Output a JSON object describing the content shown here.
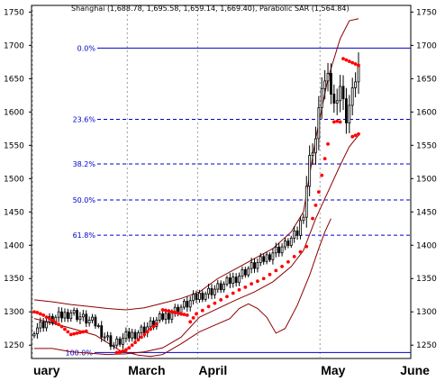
{
  "chart_data": {
    "type": "candlestick",
    "title": "Shanghai (1,688.78, 1,695.58, 1,659.14, 1,669.40), Parabolic SAR (1,564.84)",
    "ylim": [
      1230,
      1760
    ],
    "y_ticks": [
      1250,
      1300,
      1350,
      1400,
      1450,
      1500,
      1550,
      1600,
      1650,
      1700,
      1750
    ],
    "x_labels": [
      "uary",
      "March",
      "April",
      "May",
      "June"
    ],
    "month_starts": [
      0,
      31,
      54,
      94
    ],
    "n_bars": 107,
    "fibonacci": [
      {
        "label": "0.0%",
        "value": 1696
      },
      {
        "label": "23.6%",
        "value": 1589
      },
      {
        "label": "38.2%",
        "value": 1522
      },
      {
        "label": "50.0%",
        "value": 1468
      },
      {
        "label": "61.8%",
        "value": 1415
      },
      {
        "label": "100.0%",
        "value": 1239
      }
    ],
    "keypoints": [
      [
        0,
        1275
      ],
      [
        4,
        1285
      ],
      [
        8,
        1292
      ],
      [
        12,
        1300
      ],
      [
        16,
        1290
      ],
      [
        20,
        1282
      ],
      [
        23,
        1264
      ],
      [
        26,
        1250
      ],
      [
        30,
        1262
      ],
      [
        34,
        1270
      ],
      [
        38,
        1280
      ],
      [
        42,
        1292
      ],
      [
        46,
        1302
      ],
      [
        50,
        1312
      ],
      [
        54,
        1325
      ],
      [
        58,
        1332
      ],
      [
        62,
        1340
      ],
      [
        66,
        1352
      ],
      [
        70,
        1365
      ],
      [
        74,
        1375
      ],
      [
        78,
        1390
      ],
      [
        82,
        1400
      ],
      [
        86,
        1418
      ],
      [
        88,
        1450
      ],
      [
        90,
        1530
      ],
      [
        92,
        1560
      ],
      [
        94,
        1640
      ],
      [
        96,
        1650
      ],
      [
        98,
        1610
      ],
      [
        100,
        1640
      ],
      [
        102,
        1590
      ],
      [
        104,
        1630
      ],
      [
        106,
        1670
      ]
    ],
    "sar": [
      [
        0,
        1300
      ],
      [
        1,
        1299
      ],
      [
        2,
        1297
      ],
      [
        3,
        1295
      ],
      [
        4,
        1292
      ],
      [
        5,
        1290
      ],
      [
        6,
        1287
      ],
      [
        7,
        1284
      ],
      [
        8,
        1281
      ],
      [
        9,
        1278
      ],
      [
        10,
        1274
      ],
      [
        11,
        1270
      ],
      [
        12,
        1266
      ],
      [
        13,
        1267
      ],
      [
        14,
        1268
      ],
      [
        15,
        1269
      ],
      [
        16,
        1270
      ],
      [
        17,
        1271
      ],
      [
        27,
        1239
      ],
      [
        28,
        1240
      ],
      [
        29,
        1241
      ],
      [
        30,
        1243
      ],
      [
        31,
        1246
      ],
      [
        32,
        1250
      ],
      [
        33,
        1254
      ],
      [
        34,
        1258
      ],
      [
        35,
        1262
      ],
      [
        36,
        1266
      ],
      [
        37,
        1270
      ],
      [
        38,
        1274
      ],
      [
        39,
        1278
      ],
      [
        40,
        1282
      ],
      [
        42,
        1303
      ],
      [
        43,
        1302
      ],
      [
        44,
        1301
      ],
      [
        45,
        1300
      ],
      [
        46,
        1299
      ],
      [
        47,
        1298
      ],
      [
        48,
        1297
      ],
      [
        49,
        1296
      ],
      [
        50,
        1295
      ],
      [
        51,
        1285
      ],
      [
        52,
        1291
      ],
      [
        53,
        1297
      ],
      [
        55,
        1302
      ],
      [
        57,
        1308
      ],
      [
        59,
        1313
      ],
      [
        61,
        1318
      ],
      [
        63,
        1323
      ],
      [
        65,
        1328
      ],
      [
        67,
        1333
      ],
      [
        69,
        1337
      ],
      [
        71,
        1342
      ],
      [
        73,
        1346
      ],
      [
        75,
        1350
      ],
      [
        77,
        1356
      ],
      [
        79,
        1362
      ],
      [
        81,
        1368
      ],
      [
        83,
        1375
      ],
      [
        85,
        1383
      ],
      [
        87,
        1390
      ],
      [
        89,
        1398
      ],
      [
        91,
        1440
      ],
      [
        92,
        1460
      ],
      [
        93,
        1480
      ],
      [
        94,
        1505
      ],
      [
        95,
        1530
      ],
      [
        96,
        1552
      ],
      [
        98,
        1585
      ],
      [
        99,
        1586
      ],
      [
        100,
        1585
      ],
      [
        101,
        1680
      ],
      [
        102,
        1678
      ],
      [
        103,
        1676
      ],
      [
        104,
        1674
      ],
      [
        105,
        1672
      ],
      [
        106,
        1670
      ],
      [
        104,
        1563
      ],
      [
        105,
        1565
      ],
      [
        106,
        1567
      ]
    ],
    "bollinger_upper": [
      [
        0,
        1318
      ],
      [
        6,
        1315
      ],
      [
        12,
        1311
      ],
      [
        18,
        1308
      ],
      [
        24,
        1305
      ],
      [
        30,
        1303
      ],
      [
        36,
        1306
      ],
      [
        42,
        1313
      ],
      [
        48,
        1320
      ],
      [
        54,
        1330
      ],
      [
        60,
        1350
      ],
      [
        66,
        1365
      ],
      [
        72,
        1380
      ],
      [
        78,
        1395
      ],
      [
        84,
        1420
      ],
      [
        88,
        1450
      ],
      [
        92,
        1560
      ],
      [
        96,
        1650
      ],
      [
        100,
        1710
      ],
      [
        103,
        1737
      ],
      [
        106,
        1740
      ]
    ],
    "bollinger_lower": [
      [
        0,
        1245
      ],
      [
        6,
        1245
      ],
      [
        12,
        1240
      ],
      [
        18,
        1238
      ],
      [
        24,
        1236
      ],
      [
        30,
        1237
      ],
      [
        36,
        1240
      ],
      [
        42,
        1246
      ],
      [
        48,
        1262
      ],
      [
        54,
        1292
      ],
      [
        60,
        1305
      ],
      [
        66,
        1318
      ],
      [
        72,
        1330
      ],
      [
        78,
        1345
      ],
      [
        84,
        1368
      ],
      [
        88,
        1392
      ],
      [
        92,
        1440
      ],
      [
        96,
        1480
      ],
      [
        100,
        1520
      ],
      [
        103,
        1548
      ],
      [
        106,
        1565
      ]
    ],
    "lower_curve": [
      [
        0,
        1290
      ],
      [
        10,
        1278
      ],
      [
        20,
        1265
      ],
      [
        28,
        1242
      ],
      [
        34,
        1235
      ],
      [
        38,
        1233
      ],
      [
        42,
        1236
      ],
      [
        48,
        1252
      ],
      [
        54,
        1270
      ],
      [
        60,
        1282
      ],
      [
        64,
        1290
      ],
      [
        67,
        1305
      ],
      [
        70,
        1312
      ],
      [
        73,
        1305
      ],
      [
        76,
        1292
      ],
      [
        79,
        1268
      ],
      [
        82,
        1275
      ],
      [
        86,
        1310
      ],
      [
        90,
        1355
      ],
      [
        93,
        1395
      ],
      [
        95,
        1420
      ],
      [
        97,
        1440
      ]
    ]
  }
}
